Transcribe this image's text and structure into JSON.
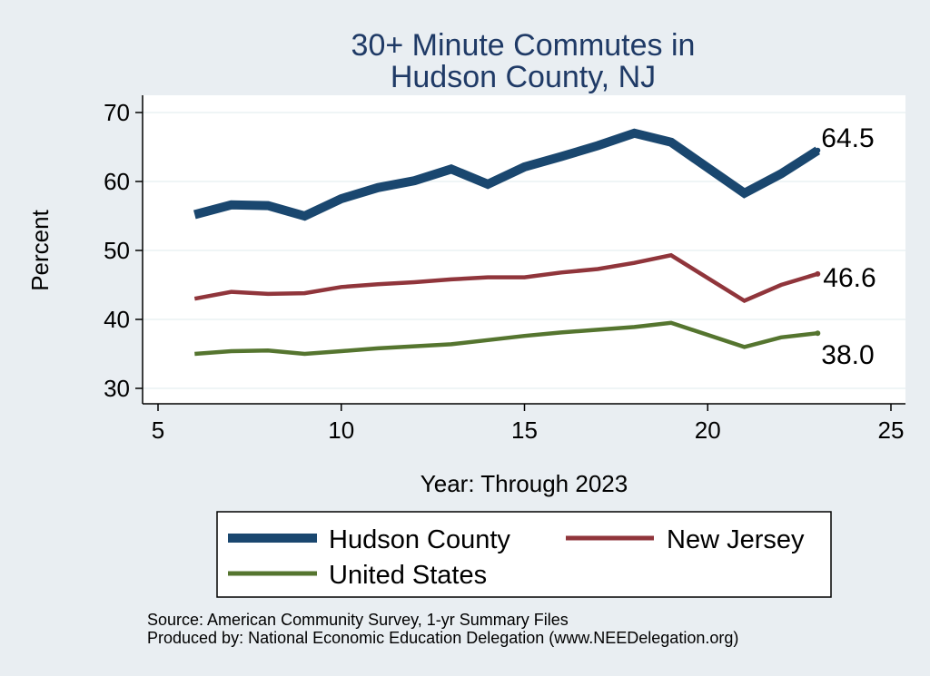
{
  "chart_data": {
    "type": "line",
    "title_lines": [
      "30+ Minute Commutes in",
      "Hudson County, NJ"
    ],
    "xlabel": "Year: Through 2023",
    "ylabel": "Percent",
    "xlim": [
      5,
      25
    ],
    "ylim": [
      28,
      72
    ],
    "xticks": [
      "5",
      "10",
      "15",
      "20",
      "25"
    ],
    "yticks": [
      "30",
      "40",
      "50",
      "60",
      "70"
    ],
    "grid": true,
    "legend_position": "bottom",
    "x": [
      6,
      7,
      8,
      9,
      10,
      11,
      12,
      13,
      14,
      15,
      16,
      17,
      18,
      19,
      21,
      22,
      23
    ],
    "series": [
      {
        "name": "Hudson County",
        "color": "#1a476f",
        "values": [
          55.2,
          56.6,
          56.5,
          55.0,
          57.5,
          59.1,
          60.1,
          61.8,
          59.6,
          62.1,
          63.6,
          65.2,
          67.0,
          65.7,
          58.3,
          61.1,
          64.5
        ],
        "end_label": "64.5"
      },
      {
        "name": "New Jersey",
        "color": "#90353b",
        "values": [
          43.0,
          44.0,
          43.7,
          43.8,
          44.7,
          45.1,
          45.4,
          45.8,
          46.1,
          46.1,
          46.8,
          47.3,
          48.2,
          49.3,
          42.7,
          45.0,
          46.6
        ],
        "end_label": "46.6"
      },
      {
        "name": "United States",
        "color": "#55752f",
        "values": [
          35.0,
          35.4,
          35.5,
          35.0,
          35.4,
          35.8,
          36.1,
          36.4,
          37.0,
          37.6,
          38.1,
          38.5,
          38.9,
          39.5,
          36.0,
          37.4,
          38.0
        ],
        "end_label": "38.0"
      }
    ]
  },
  "legend": {
    "items": [
      "Hudson County",
      "New Jersey",
      "United States"
    ]
  },
  "footer": {
    "source": "Source: American Community Survey, 1-yr Summary Files",
    "produced_by": "Produced by: National Economic Education Delegation (www.NEEDelegation.org)"
  }
}
